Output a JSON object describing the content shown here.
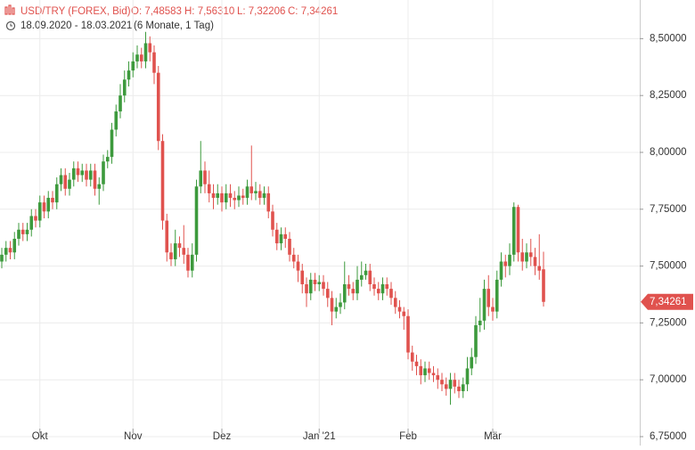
{
  "chart_data": {
    "type": "candlestick",
    "header": {
      "title": "USD/TRY (FOREX, Bid)",
      "ohlc": [
        "O: 7,48583",
        "H: 7,56310",
        "L: 7,32206",
        "C: 7,34261"
      ],
      "range": "18.09.2020 - 18.03.2021",
      "period": "(6 Monate, 1 Tag)"
    },
    "categories": [
      null,
      null,
      null,
      null,
      null,
      null,
      null,
      null,
      null,
      "Okt",
      null,
      null,
      null,
      null,
      null,
      null,
      null,
      null,
      null,
      null,
      null,
      null,
      null,
      null,
      null,
      null,
      null,
      null,
      null,
      null,
      null,
      "Nov",
      null,
      null,
      null,
      null,
      null,
      null,
      null,
      null,
      null,
      null,
      null,
      null,
      null,
      null,
      null,
      null,
      null,
      null,
      null,
      null,
      "Dez",
      null,
      null,
      null,
      null,
      null,
      null,
      null,
      null,
      null,
      null,
      null,
      null,
      null,
      null,
      null,
      null,
      null,
      null,
      null,
      null,
      null,
      null,
      "Jan '21",
      null,
      null,
      null,
      null,
      null,
      null,
      null,
      null,
      null,
      null,
      null,
      null,
      null,
      null,
      null,
      null,
      null,
      null,
      null,
      null,
      "Feb",
      null,
      null,
      null,
      null,
      null,
      null,
      null,
      null,
      null,
      null,
      null,
      null,
      null,
      null,
      null,
      null,
      null,
      null,
      null,
      "Mär",
      null,
      null,
      null,
      null,
      null,
      null,
      null,
      null,
      null,
      null,
      null,
      null
    ],
    "open": [
      7.52,
      7.55,
      7.58,
      7.56,
      7.62,
      7.66,
      7.64,
      7.66,
      7.72,
      7.7,
      7.78,
      7.74,
      7.8,
      7.78,
      7.86,
      7.9,
      7.84,
      7.88,
      7.93,
      7.9,
      7.92,
      7.88,
      7.92,
      7.84,
      7.86,
      7.96,
      7.98,
      8.1,
      8.18,
      8.25,
      8.32,
      8.36,
      8.4,
      8.43,
      8.4,
      8.48,
      8.44,
      8.35,
      8.05,
      7.7,
      7.56,
      7.53,
      7.6,
      7.58,
      7.55,
      7.48,
      7.55,
      7.85,
      7.92,
      7.86,
      7.82,
      7.8,
      7.82,
      7.78,
      7.82,
      7.8,
      7.79,
      7.81,
      7.8,
      7.85,
      7.82,
      7.83,
      7.8,
      7.82,
      7.74,
      7.66,
      7.6,
      7.64,
      7.62,
      7.55,
      7.52,
      7.48,
      7.42,
      7.38,
      7.44,
      7.42,
      7.43,
      7.4,
      7.36,
      7.3,
      7.32,
      7.34,
      7.42,
      7.4,
      7.38,
      7.44,
      7.46,
      7.48,
      7.42,
      7.4,
      7.38,
      7.42,
      7.4,
      7.36,
      7.32,
      7.3,
      7.28,
      7.12,
      7.08,
      7.06,
      7.02,
      7.05,
      7.03,
      7.02,
      7.0,
      6.98,
      6.96,
      7.0,
      6.97,
      6.95,
      6.98,
      7.05,
      7.1,
      7.24,
      7.26,
      7.4,
      7.32,
      7.3,
      7.44,
      7.52,
      7.5,
      7.55,
      7.76,
      7.56,
      7.52,
      7.56,
      7.54,
      7.5,
      7.48583
    ],
    "high": [
      7.58,
      7.61,
      7.61,
      7.65,
      7.69,
      7.69,
      7.69,
      7.75,
      7.75,
      7.81,
      7.81,
      7.83,
      7.83,
      7.89,
      7.93,
      7.93,
      7.91,
      7.96,
      7.96,
      7.95,
      7.95,
      7.95,
      7.95,
      7.89,
      7.99,
      8.01,
      8.13,
      8.21,
      8.3,
      8.36,
      8.4,
      8.44,
      8.47,
      8.46,
      8.53,
      8.51,
      8.47,
      8.38,
      8.08,
      7.73,
      7.6,
      7.66,
      7.63,
      7.68,
      7.58,
      7.6,
      7.88,
      8.05,
      7.96,
      7.92,
      7.86,
      7.86,
      7.85,
      7.86,
      7.86,
      7.83,
      7.85,
      7.84,
      7.88,
      8.03,
      7.87,
      7.86,
      7.85,
      7.85,
      7.77,
      7.69,
      7.67,
      7.67,
      7.65,
      7.58,
      7.55,
      7.51,
      7.45,
      7.47,
      7.47,
      7.46,
      7.46,
      7.43,
      7.39,
      7.36,
      7.38,
      7.52,
      7.46,
      7.43,
      7.5,
      7.52,
      7.51,
      7.51,
      7.45,
      7.43,
      7.45,
      7.45,
      7.43,
      7.39,
      7.35,
      7.32,
      7.31,
      7.15,
      7.11,
      7.09,
      7.08,
      7.08,
      7.06,
      7.05,
      7.03,
      7.01,
      7.03,
      7.03,
      7.0,
      7.01,
      7.1,
      7.14,
      7.28,
      7.36,
      7.44,
      7.46,
      7.36,
      7.48,
      7.56,
      7.55,
      7.6,
      7.78,
      7.77,
      7.62,
      7.6,
      7.62,
      7.58,
      7.64,
      7.5631
    ],
    "low": [
      7.49,
      7.52,
      7.53,
      7.53,
      7.59,
      7.61,
      7.61,
      7.63,
      7.67,
      7.67,
      7.71,
      7.71,
      7.75,
      7.75,
      7.83,
      7.81,
      7.81,
      7.85,
      7.87,
      7.87,
      7.85,
      7.85,
      7.81,
      7.77,
      7.83,
      7.93,
      7.95,
      8.07,
      8.15,
      8.22,
      8.29,
      8.33,
      8.37,
      8.37,
      8.37,
      8.4,
      8.3,
      8.01,
      7.66,
      7.52,
      7.5,
      7.5,
      7.54,
      7.51,
      7.45,
      7.45,
      7.52,
      7.82,
      7.82,
      7.78,
      7.75,
      7.77,
      7.74,
      7.75,
      7.76,
      7.75,
      7.76,
      7.77,
      7.77,
      7.79,
      7.79,
      7.77,
      7.77,
      7.71,
      7.63,
      7.57,
      7.57,
      7.58,
      7.52,
      7.49,
      7.43,
      7.38,
      7.32,
      7.35,
      7.39,
      7.39,
      7.37,
      7.32,
      7.24,
      7.27,
      7.29,
      7.31,
      7.37,
      7.35,
      7.35,
      7.41,
      7.44,
      7.39,
      7.37,
      7.35,
      7.35,
      7.37,
      7.33,
      7.29,
      7.27,
      7.22,
      7.09,
      7.04,
      7.02,
      6.98,
      6.99,
      7.0,
      6.99,
      6.96,
      6.95,
      6.93,
      6.89,
      6.94,
      6.92,
      6.92,
      6.95,
      7.02,
      7.07,
      7.21,
      7.22,
      7.28,
      7.26,
      7.27,
      7.41,
      7.45,
      7.46,
      7.52,
      7.52,
      7.48,
      7.49,
      7.5,
      7.46,
      7.44,
      7.32206
    ],
    "close": [
      7.55,
      7.58,
      7.56,
      7.62,
      7.66,
      7.64,
      7.66,
      7.72,
      7.7,
      7.78,
      7.74,
      7.8,
      7.78,
      7.86,
      7.9,
      7.84,
      7.88,
      7.93,
      7.9,
      7.92,
      7.88,
      7.92,
      7.84,
      7.86,
      7.96,
      7.98,
      8.1,
      8.18,
      8.25,
      8.32,
      8.36,
      8.4,
      8.43,
      8.4,
      8.48,
      8.44,
      8.35,
      8.05,
      7.7,
      7.56,
      7.53,
      7.6,
      7.58,
      7.55,
      7.48,
      7.55,
      7.85,
      7.92,
      7.86,
      7.82,
      7.8,
      7.82,
      7.78,
      7.82,
      7.8,
      7.79,
      7.81,
      7.8,
      7.85,
      7.82,
      7.83,
      7.8,
      7.82,
      7.74,
      7.66,
      7.6,
      7.64,
      7.62,
      7.55,
      7.52,
      7.48,
      7.42,
      7.38,
      7.44,
      7.42,
      7.43,
      7.4,
      7.36,
      7.3,
      7.32,
      7.34,
      7.42,
      7.4,
      7.38,
      7.44,
      7.46,
      7.48,
      7.42,
      7.4,
      7.38,
      7.42,
      7.4,
      7.36,
      7.32,
      7.3,
      7.28,
      7.12,
      7.08,
      7.06,
      7.02,
      7.05,
      7.03,
      7.02,
      7.0,
      6.98,
      6.96,
      7.0,
      6.97,
      6.95,
      6.98,
      7.05,
      7.1,
      7.24,
      7.26,
      7.4,
      7.32,
      7.3,
      7.44,
      7.52,
      7.5,
      7.55,
      7.76,
      7.56,
      7.52,
      7.56,
      7.54,
      7.5,
      7.48,
      7.34261
    ],
    "last_label": "7,34261",
    "up_color": "#3d9a3d",
    "down_color": "#e0524e",
    "ylim": [
      6.75,
      8.67
    ],
    "yticks": [
      {
        "value": 6.75,
        "label": "6,75000"
      },
      {
        "value": 7,
        "label": "7,00000"
      },
      {
        "value": 7.25,
        "label": "7,25000"
      },
      {
        "value": 7.5,
        "label": "7,50000"
      },
      {
        "value": 7.75,
        "label": "7,75000"
      },
      {
        "value": 8,
        "label": "8,00000"
      },
      {
        "value": 8.25,
        "label": "8,25000"
      },
      {
        "value": 8.5,
        "label": "8,50000"
      }
    ],
    "grid": true
  }
}
